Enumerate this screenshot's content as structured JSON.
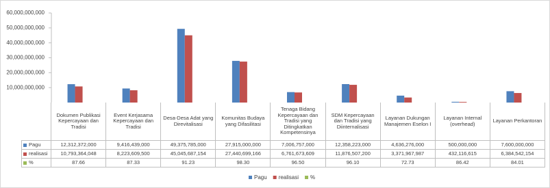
{
  "chart_data": {
    "type": "bar",
    "categories": [
      "Dokumen Publikasi Kepercayaan dan Tradisi",
      "Event Kerjasama Kepercayaan dan Tradisi",
      "Desa-Desa Adat yang Direvitalisasi",
      "Komunitas Budaya yang Difasilitasi",
      "Tenaga Bidang Kepercayaan dan Tradisi yang Ditingkatkan Kompetensinya",
      "SDM Kepercayaan dan Tradisi yang Diinternalisasi",
      "Layanan Dukungan Manajemen Eselon I",
      "Layanan Internal (overhead)",
      "Layanan Perkantoran"
    ],
    "series": [
      {
        "name": "Pagu",
        "color": "#4f81bd",
        "values": [
          12312372000,
          9416439000,
          49375785000,
          27915000000,
          7006757000,
          12358223000,
          4636276000,
          500000000,
          7600000000
        ],
        "value_labels": [
          "12,312,372,000",
          "9,416,439,000",
          "49,375,785,000",
          "27,915,000,000",
          "7,006,757,000",
          "12,358,223,000",
          "4,636,276,000",
          "500,000,000",
          "7,600,000,000"
        ]
      },
      {
        "name": "realisasi",
        "color": "#c0504d",
        "values": [
          10793364048,
          8223609500,
          45045687154,
          27440699166,
          6761673609,
          11876507200,
          3371967987,
          432116615,
          6384542154
        ],
        "value_labels": [
          "10,793,364,048",
          "8,223,609,500",
          "45,045,687,154",
          "27,440,699,166",
          "6,761,673,609",
          "11,876,507,200",
          "3,371,967,987",
          "432,116,615",
          "6,384,542,154"
        ]
      },
      {
        "name": "%",
        "color": "#9bbb59",
        "values": [
          87.66,
          87.33,
          91.23,
          98.3,
          96.5,
          96.1,
          72.73,
          86.42,
          84.01
        ],
        "value_labels": [
          "87.66",
          "87.33",
          "91.23",
          "98.30",
          "96.50",
          "96.10",
          "72.73",
          "86.42",
          "84.01"
        ]
      }
    ],
    "ylim": [
      0,
      60000000000
    ],
    "yticks": [
      {
        "value": 10000000000,
        "label": "10,000,000,000"
      },
      {
        "value": 20000000000,
        "label": "20,000,000,000"
      },
      {
        "value": 30000000000,
        "label": "30,000,000,000"
      },
      {
        "value": 40000000000,
        "label": "40,000,000,000"
      },
      {
        "value": 50000000000,
        "label": "50,000,000,000"
      },
      {
        "value": 60000000000,
        "label": "60,000,000,000"
      }
    ],
    "grid": false
  }
}
